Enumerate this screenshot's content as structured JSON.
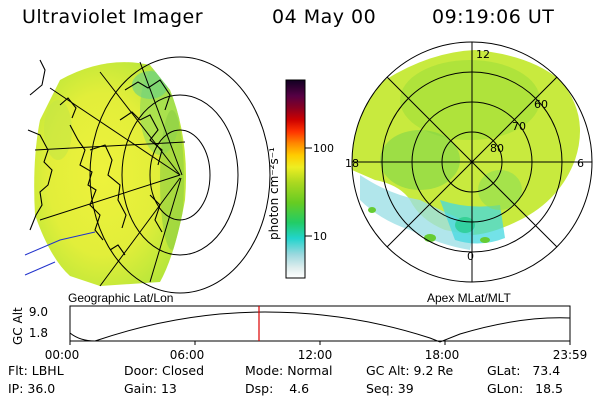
{
  "header": {
    "instrument": "Ultraviolet Imager",
    "date": "04 May 00",
    "time": "09:19:06 UT"
  },
  "colorbar": {
    "unit_label": "photon cm⁻²s⁻¹",
    "ticks": [
      "100",
      "10"
    ]
  },
  "panels": {
    "geographic_label": "Geographic Lat/Lon",
    "apex_label": "Apex MLat/MLT",
    "mlat_labels": [
      "60",
      "70",
      "80"
    ],
    "mlt_labels": [
      "12",
      "18",
      "6",
      "0"
    ]
  },
  "timeline": {
    "ylabel": "GC Alt",
    "y_ticks": [
      "9.0",
      "1.8"
    ],
    "x_ticks": [
      "00:00",
      "06:00",
      "12:00",
      "18:00",
      "23:59"
    ],
    "current_marker_time": "09:19"
  },
  "info": {
    "row1": [
      {
        "label": "Flt:",
        "value": "LBHL"
      },
      {
        "label": "Door:",
        "value": "Closed"
      },
      {
        "label": "Mode:",
        "value": "Normal"
      },
      {
        "label": "GC Alt:",
        "value": "9.2 Re"
      },
      {
        "label": "GLat:",
        "value": "73.4"
      }
    ],
    "row2": [
      {
        "label": "IP:",
        "value": "36.0"
      },
      {
        "label": "Gain:",
        "value": "13"
      },
      {
        "label": "Dsp:",
        "value": "4.6"
      },
      {
        "label": "Seq:",
        "value": "39"
      },
      {
        "label": "GLon:",
        "value": "18.5"
      }
    ]
  },
  "colors": {
    "aurora_main": "#e8f040",
    "aurora_green": "#88dd22",
    "aurora_cyan": "#44ddee",
    "marker": "#dd0000"
  }
}
